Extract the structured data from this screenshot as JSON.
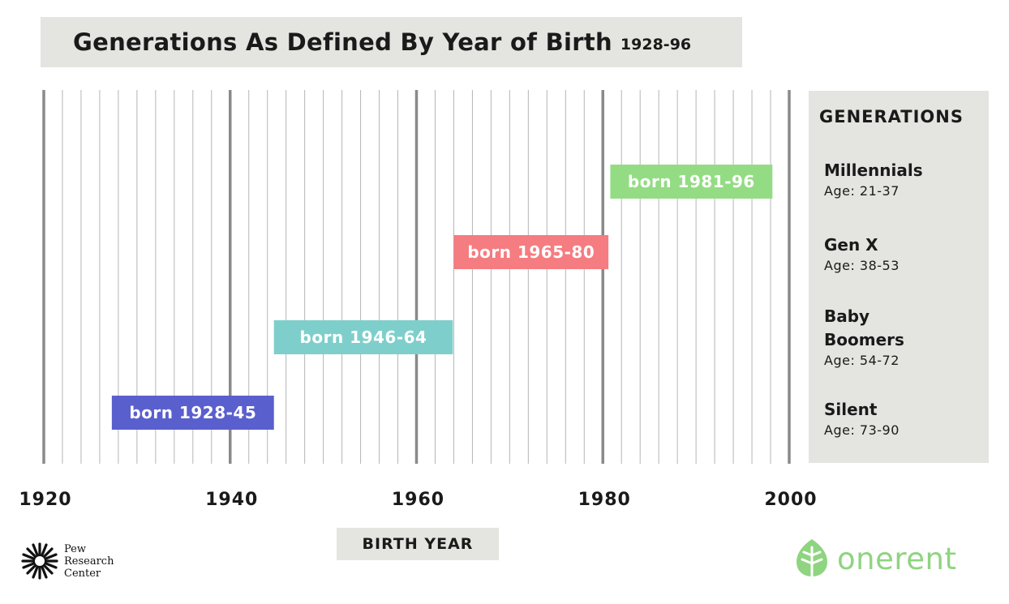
{
  "title": {
    "main": "Generations As Defined By Year of Birth",
    "sub": "1928-96"
  },
  "chart_data": {
    "type": "timeline",
    "xlabel": "BIRTH YEAR",
    "xlim": [
      1920,
      2000
    ],
    "major_ticks": [
      1920,
      1940,
      1960,
      1980,
      2000
    ],
    "tick_labels": [
      "1920",
      "1940",
      "1960",
      "1980",
      "2000"
    ],
    "minor_tick_step": 2,
    "bars": [
      {
        "generation": "Silent",
        "label": "born 1928-45",
        "start": 1927.3,
        "end": 1944.7,
        "color": "#5a5fce"
      },
      {
        "generation": "Baby Boomers",
        "label": "born 1946-64",
        "start": 1944.7,
        "end": 1963.9,
        "color": "#7ecfcb"
      },
      {
        "generation": "Gen X",
        "label": "born 1965-80",
        "start": 1964.0,
        "end": 1980.6,
        "color": "#f57c80"
      },
      {
        "generation": "Millennials",
        "label": "born 1981-96",
        "start": 1980.8,
        "end": 1998.2,
        "color": "#94dc84"
      }
    ]
  },
  "legend": {
    "title": "GENERATIONS",
    "items": [
      {
        "name": "Millennials",
        "age": "Age: 21-37"
      },
      {
        "name": "Gen X",
        "age": "Age: 38-53"
      },
      {
        "name": "Baby Boomers",
        "age": "Age: 54-72"
      },
      {
        "name": "Silent",
        "age": "Age: 73-90"
      }
    ]
  },
  "logos": {
    "pew_lines": [
      "Pew",
      "Research",
      "Center"
    ],
    "onerent": "onerent"
  }
}
